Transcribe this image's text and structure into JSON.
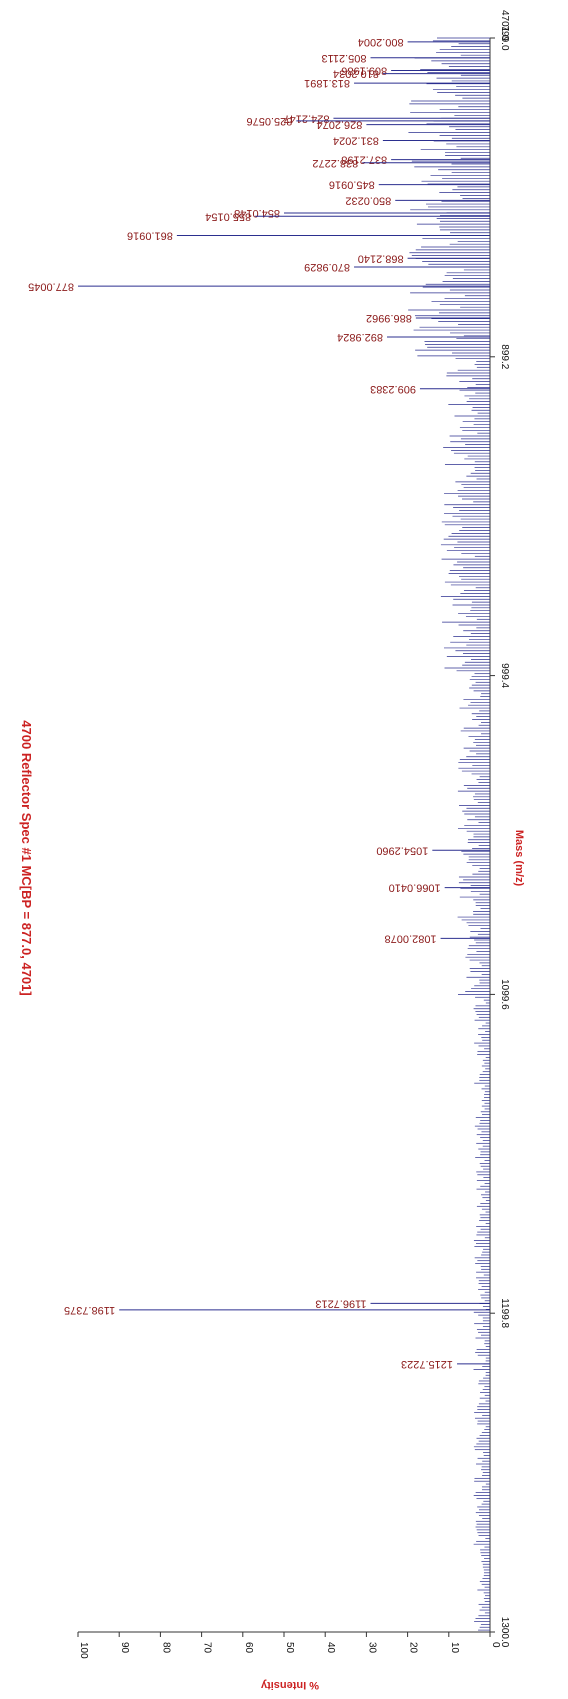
{
  "chart_data": {
    "type": "line",
    "title": "4700 Reflector Spec #1 MC[BP = 877.0, 4701]",
    "xlabel": "Mass (m/z)",
    "ylabel": "% Intensity",
    "xlim": [
      799.0,
      1300.0
    ],
    "ylim": [
      0,
      100
    ],
    "max_intensity_label": "4701.0",
    "x_ticks": [
      "799.0",
      "899.2",
      "999.4",
      "1099.6",
      "1199.8",
      "1300.0"
    ],
    "y_ticks": [
      "0",
      "10",
      "20",
      "30",
      "40",
      "50",
      "60",
      "70",
      "80",
      "90",
      "100"
    ],
    "series": [
      {
        "color": "#2b2f8f",
        "labeled_peaks": [
          {
            "x": 800.2004,
            "y": 20,
            "label": "800.2004"
          },
          {
            "x": 805.2113,
            "y": 29,
            "label": "805.2113"
          },
          {
            "x": 809.1986,
            "y": 24,
            "label": "809.1986"
          },
          {
            "x": 810.2034,
            "y": 26,
            "label": "810.2034"
          },
          {
            "x": 813.1891,
            "y": 33,
            "label": "813.1891"
          },
          {
            "x": 824.2147,
            "y": 38,
            "label": "824.2147"
          },
          {
            "x": 825.0576,
            "y": 47,
            "label": "825.0576"
          },
          {
            "x": 826.2074,
            "y": 30,
            "label": "826.2074"
          },
          {
            "x": 831.2024,
            "y": 26,
            "label": "831.2024"
          },
          {
            "x": 837.2198,
            "y": 24,
            "label": "837.2198"
          },
          {
            "x": 838.2272,
            "y": 31,
            "label": "838.2272"
          },
          {
            "x": 845.0916,
            "y": 27,
            "label": "845.0916"
          },
          {
            "x": 850.0232,
            "y": 23,
            "label": "850.0232"
          },
          {
            "x": 854.0148,
            "y": 50,
            "label": "854.0148"
          },
          {
            "x": 855.0154,
            "y": 57,
            "label": "855.0154"
          },
          {
            "x": 861.0916,
            "y": 76,
            "label": "861.0916"
          },
          {
            "x": 868.214,
            "y": 20,
            "label": "868.2140"
          },
          {
            "x": 870.9829,
            "y": 33,
            "label": "870.9829"
          },
          {
            "x": 877.0045,
            "y": 100,
            "label": "877.0045"
          },
          {
            "x": 886.9962,
            "y": 18,
            "label": "886.9962"
          },
          {
            "x": 892.9824,
            "y": 25,
            "label": "892.9824"
          },
          {
            "x": 909.2383,
            "y": 17,
            "label": "909.2383"
          },
          {
            "x": 1054.296,
            "y": 14,
            "label": "1054.2960"
          },
          {
            "x": 1066.041,
            "y": 11,
            "label": "1066.0410"
          },
          {
            "x": 1082.0078,
            "y": 12,
            "label": "1082.0078"
          },
          {
            "x": 1196.7213,
            "y": 29,
            "label": "1196.7213"
          },
          {
            "x": 1198.7375,
            "y": 90,
            "label": "1198.7375"
          },
          {
            "x": 1215.7223,
            "y": 8,
            "label": "1215.7223"
          }
        ]
      }
    ]
  }
}
